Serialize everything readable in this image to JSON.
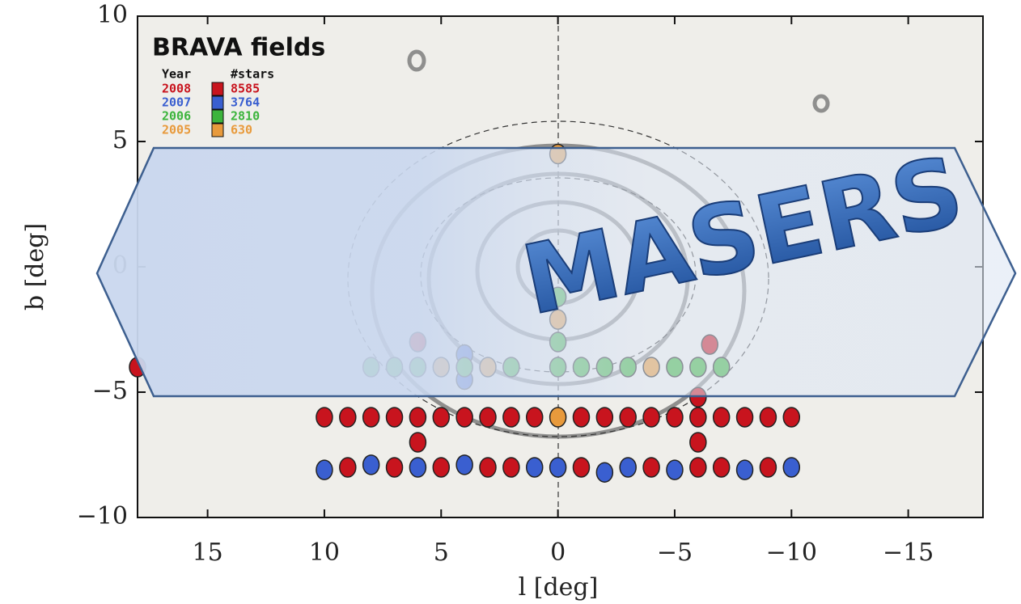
{
  "chart_data": {
    "type": "scatter",
    "title": "BRAVA fields",
    "xlabel": "l [deg]",
    "ylabel": "b [deg]",
    "legend_year_header": "Year",
    "legend_count_header": "#stars",
    "xlim": [
      18,
      -18.2
    ],
    "ylim": [
      -10,
      10
    ],
    "xticks": [
      15,
      10,
      5,
      0,
      {
        "value": -5,
        "label": "−5"
      },
      {
        "value": -10,
        "label": "−10"
      },
      {
        "value": -15,
        "label": "−15"
      }
    ],
    "yticks": [
      10,
      5,
      0,
      {
        "value": -5,
        "label": "−5"
      },
      {
        "value": -10,
        "label": "−10"
      }
    ],
    "series": [
      {
        "name": "2008",
        "stars": 8585,
        "color": "#c8141e",
        "x": [
          10,
          9,
          8,
          7,
          6,
          5,
          4,
          3,
          2,
          1,
          -1,
          -2,
          -3,
          -4,
          -5,
          -6,
          -7,
          -8,
          -9,
          -10,
          6,
          -6,
          -6,
          9,
          7,
          5,
          3,
          2,
          -1,
          -4,
          -6,
          -7,
          -9,
          6,
          -6.5,
          18
        ],
        "y": [
          -6,
          -6,
          -6,
          -6,
          -6,
          -6,
          -6,
          -6,
          -6,
          -6,
          -6,
          -6,
          -6,
          -6,
          -6,
          -6,
          -6,
          -6,
          -6,
          -6,
          -7,
          -7,
          -5.2,
          -8,
          -8,
          -8,
          -8,
          -8,
          -8,
          -8,
          -8,
          -8,
          -8,
          -3,
          -3.1,
          -4
        ]
      },
      {
        "name": "2007",
        "stars": 3764,
        "color": "#3a5fd0",
        "x": [
          10,
          8,
          6,
          4,
          1,
          0,
          -2,
          -3,
          -5,
          -8,
          -10,
          4,
          4
        ],
        "y": [
          -8.1,
          -7.9,
          -8,
          -7.9,
          -8,
          -8,
          -8.2,
          -8,
          -8.1,
          -8.1,
          -8,
          -3.5,
          -4.5
        ]
      },
      {
        "name": "2006",
        "stars": 2810,
        "color": "#3cb43c",
        "x": [
          8,
          7,
          6,
          4,
          2,
          0,
          -1,
          -2,
          -3,
          -5,
          -6,
          -7,
          0,
          0
        ],
        "y": [
          -4,
          -4,
          -4,
          -4,
          -4,
          -4,
          -4,
          -4,
          -4,
          -4,
          -4,
          -4,
          -3,
          -1.2
        ]
      },
      {
        "name": "2005",
        "stars": 630,
        "color": "#e89a3c",
        "x": [
          5,
          3,
          -4,
          0,
          0,
          0
        ],
        "y": [
          -4,
          -4,
          -4,
          4.5,
          -2.1,
          -6
        ]
      }
    ]
  },
  "banner": {
    "text": "MASERS"
  }
}
